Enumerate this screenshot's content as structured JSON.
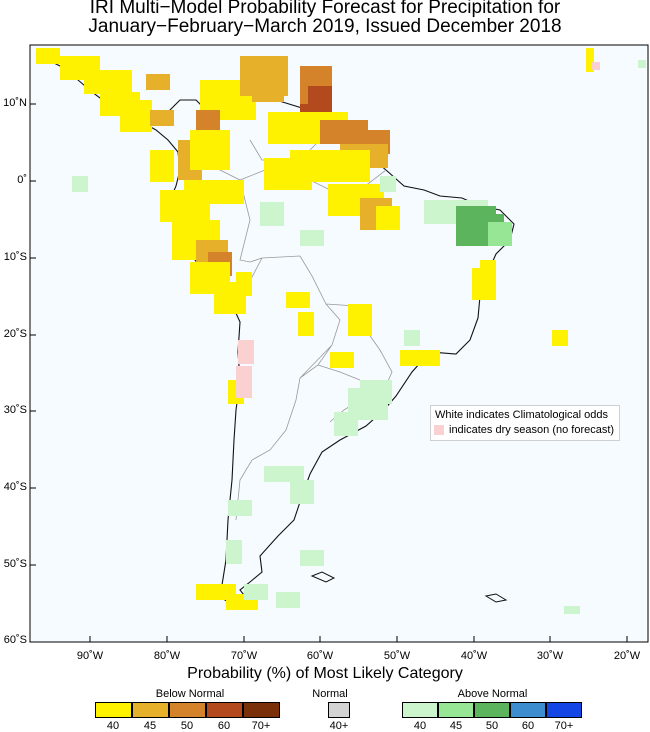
{
  "title": {
    "line1": "IRI Multi−Model Probability Forecast for Precipitation for",
    "line2": "January−February−March 2019, Issued December 2018"
  },
  "map": {
    "region": "South America",
    "lat_labels": [
      "10˚N",
      "0˚",
      "10˚S",
      "20˚S",
      "30˚S",
      "40˚S",
      "50˚S",
      "60˚S"
    ],
    "lon_labels": [
      "90˚W",
      "80˚W",
      "70˚W",
      "60˚W",
      "50˚W",
      "40˚W",
      "30˚W",
      "20˚W"
    ],
    "note_white": "White indicates Climatological odds",
    "note_dry": "indicates dry season (no forecast)"
  },
  "legend": {
    "title": "Probability (%) of Most Likely Category",
    "below": {
      "label": "Below Normal",
      "values": [
        "40",
        "45",
        "50",
        "60",
        "70+"
      ],
      "colors": [
        "#fff200",
        "#e7b02b",
        "#d4832b",
        "#b34a1e",
        "#7a3008"
      ]
    },
    "normal": {
      "label": "Normal",
      "values": [
        "40+"
      ],
      "colors": [
        "#d3d3d3"
      ]
    },
    "above": {
      "label": "Above Normal",
      "values": [
        "40",
        "45",
        "50",
        "60",
        "70+"
      ],
      "colors": [
        "#cdf5cd",
        "#96e696",
        "#5cb45c",
        "#3c8cd0",
        "#1446e6"
      ]
    },
    "dry_color": "#fbd0d0"
  }
}
